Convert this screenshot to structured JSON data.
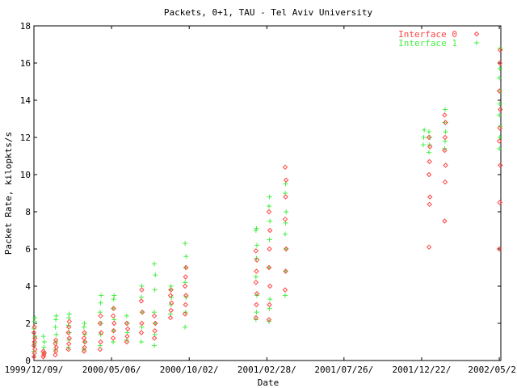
{
  "chart_data": {
    "type": "scatter",
    "title": "Packets, 0+1, TAU - Tel Aviv University",
    "xlabel": "Date",
    "ylabel": "Packet Rate, kilopkts/s",
    "ylim": [
      0,
      18
    ],
    "yticks": [
      0,
      2,
      4,
      6,
      8,
      10,
      12,
      14,
      16,
      18
    ],
    "xlim": [
      "1999-12-09",
      "2002-05-23"
    ],
    "xticks": [
      {
        "date": "1999-12-09",
        "label": "1999/12/09/"
      },
      {
        "date": "2000-05-06",
        "label": "2000/05/06/"
      },
      {
        "date": "2000-10-02",
        "label": "2000/10/02/"
      },
      {
        "date": "2001-02-28",
        "label": "2001/02/28/"
      },
      {
        "date": "2001-07-26",
        "label": "2001/07/26/"
      },
      {
        "date": "2001-12-22",
        "label": "2001/12/22/"
      },
      {
        "date": "2002-05-20",
        "label": "2002/05/2"
      }
    ],
    "grid": false,
    "legend_position": "top-right",
    "series": [
      {
        "name": "Interface 0",
        "color": "#ff4444",
        "marker": "diamond",
        "groups": [
          {
            "date": "1999-12-10",
            "values": [
              0.2,
              0.4,
              0.6,
              0.8,
              1.0,
              1.2,
              1.5,
              1.8
            ]
          },
          {
            "date": "1999-12-28",
            "values": [
              0.2,
              0.3,
              0.4,
              0.5
            ]
          },
          {
            "date": "2000-01-20",
            "values": [
              0.3,
              0.5,
              0.7,
              0.9,
              1.1
            ]
          },
          {
            "date": "2000-02-14",
            "values": [
              0.6,
              0.9,
              1.2,
              1.5,
              1.8,
              2.1
            ]
          },
          {
            "date": "2000-03-15",
            "values": [
              0.5,
              0.7,
              1.0,
              1.2,
              1.5
            ]
          },
          {
            "date": "2000-04-15",
            "values": [
              0.6,
              1.0,
              1.5,
              2.0,
              2.4
            ]
          },
          {
            "date": "2000-05-10",
            "values": [
              1.2,
              1.6,
              2.0,
              2.4,
              2.8
            ]
          },
          {
            "date": "2000-06-05",
            "values": [
              1.0,
              1.3,
              1.7,
              2.0
            ]
          },
          {
            "date": "2000-07-03",
            "values": [
              1.5,
              2.0,
              2.6,
              3.2,
              3.8
            ]
          },
          {
            "date": "2000-07-28",
            "values": [
              1.2,
              1.6,
              2.0,
              2.4
            ]
          },
          {
            "date": "2000-08-28",
            "values": [
              2.3,
              2.7,
              3.1,
              3.5,
              3.8
            ]
          },
          {
            "date": "2000-09-25",
            "values": [
              2.5,
              3.0,
              3.5,
              4.0,
              4.5,
              5.0
            ]
          },
          {
            "date": "2001-02-08",
            "values": [
              2.3,
              3.0,
              3.6,
              4.2,
              4.8,
              5.4,
              5.9
            ]
          },
          {
            "date": "2001-03-05",
            "values": [
              2.2,
              3.0,
              4.0,
              5.0,
              6.0,
              7.0,
              8.0
            ]
          },
          {
            "date": "2001-04-05",
            "values": [
              3.8,
              4.8,
              6.0,
              7.6,
              8.8,
              9.7,
              10.4
            ]
          },
          {
            "date": "2002-01-06",
            "values": [
              6.1,
              8.4,
              8.8,
              10.0,
              10.7,
              11.5,
              12.0
            ]
          },
          {
            "date": "2002-02-05",
            "values": [
              7.5,
              9.6,
              10.5,
              11.3,
              12.0,
              12.8,
              13.2
            ]
          },
          {
            "date": "2002-05-21",
            "values": [
              6.0,
              8.5,
              10.5,
              11.8,
              12.5,
              13.5,
              14.5,
              16.0,
              16.7
            ]
          }
        ]
      },
      {
        "name": "Interface 1",
        "color": "#44ee44",
        "marker": "plus",
        "groups": [
          {
            "date": "1999-12-10",
            "values": [
              0.5,
              0.9,
              1.3,
              1.7,
              2.1,
              2.3
            ]
          },
          {
            "date": "1999-12-28",
            "values": [
              0.4,
              0.7,
              1.0,
              1.3
            ]
          },
          {
            "date": "2000-01-20",
            "values": [
              0.6,
              1.0,
              1.4,
              1.8,
              2.2,
              2.4
            ]
          },
          {
            "date": "2000-02-14",
            "values": [
              0.7,
              1.1,
              1.5,
              1.9,
              2.3,
              2.5
            ]
          },
          {
            "date": "2000-03-15",
            "values": [
              0.6,
              1.0,
              1.4,
              1.8,
              2.0
            ]
          },
          {
            "date": "2000-04-15",
            "values": [
              0.8,
              1.4,
              2.0,
              2.6,
              3.1,
              3.5
            ]
          },
          {
            "date": "2000-05-10",
            "values": [
              1.0,
              1.6,
              2.2,
              2.8,
              3.3,
              3.5
            ]
          },
          {
            "date": "2000-06-05",
            "values": [
              1.1,
              1.5,
              2.0,
              2.4
            ]
          },
          {
            "date": "2000-07-03",
            "values": [
              1.0,
              1.8,
              2.6,
              3.4,
              4.0
            ]
          },
          {
            "date": "2000-07-28",
            "values": [
              0.8,
              1.4,
              2.0,
              2.6,
              3.8,
              4.6,
              5.2
            ]
          },
          {
            "date": "2000-08-28",
            "values": [
              2.5,
              3.0,
              3.4,
              3.8,
              4.0
            ]
          },
          {
            "date": "2000-09-25",
            "values": [
              1.8,
              2.6,
              3.4,
              4.2,
              5.0,
              5.6,
              6.3
            ]
          },
          {
            "date": "2001-02-08",
            "values": [
              2.2,
              2.6,
              3.5,
              4.5,
              5.5,
              6.2,
              7.0,
              7.1
            ]
          },
          {
            "date": "2001-03-05",
            "values": [
              2.1,
              2.8,
              3.3,
              5.0,
              6.5,
              7.5,
              8.3,
              8.8
            ]
          },
          {
            "date": "2001-04-05",
            "values": [
              3.5,
              4.8,
              6.0,
              6.8,
              7.4,
              8.0,
              9.0,
              9.5
            ]
          },
          {
            "date": "2001-12-26",
            "values": [
              11.6,
              12.0,
              12.4
            ]
          },
          {
            "date": "2002-01-06",
            "values": [
              11.2,
              11.6,
              12.0,
              12.3
            ]
          },
          {
            "date": "2002-02-05",
            "values": [
              11.4,
              11.8,
              12.3,
              12.8,
              13.5
            ]
          },
          {
            "date": "2002-05-21",
            "values": [
              11.4,
              12.0,
              12.6,
              13.2,
              13.8,
              14.5,
              15.2,
              15.7,
              16.8
            ]
          }
        ]
      }
    ]
  }
}
